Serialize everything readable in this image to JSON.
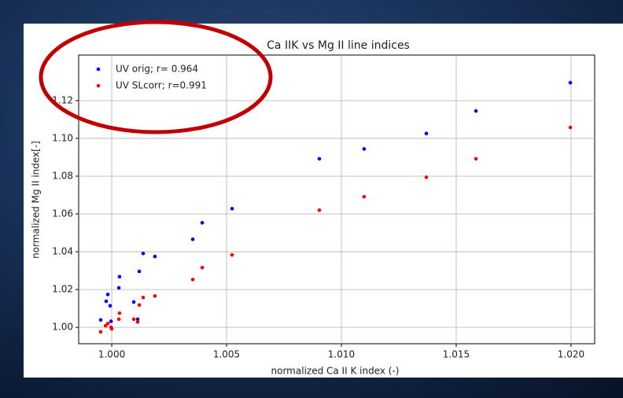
{
  "chart_data": {
    "type": "scatter",
    "title": "Ca IIK vs Mg II line indices",
    "x_label": "normalized Ca II K index (-)",
    "y_label": "normalized Mg II index[-]",
    "xlim": [
      0.99856,
      1.02103
    ],
    "ylim": [
      0.99132,
      1.1441
    ],
    "xticks": [
      {
        "value": 1.0,
        "label": "1.000"
      },
      1.005,
      {
        "value": 1.01,
        "label": "1.010"
      },
      1.015,
      {
        "value": 1.02,
        "label": "1.020"
      }
    ],
    "yticks": [
      {
        "value": 1.0,
        "label": "1.00"
      },
      1.02,
      1.04,
      1.06,
      1.08,
      {
        "value": 1.1,
        "label": "1.10"
      },
      1.12
    ],
    "grid": true,
    "legend": "upper-left",
    "series": [
      {
        "name": "UV orig; r= 0.964",
        "color": "#0000ff",
        "x": [
          0.99952,
          0.99976,
          0.99983,
          0.99993,
          0.99997,
          1.00031,
          1.00034,
          1.00096,
          1.00113,
          1.0012,
          1.00137,
          1.00188,
          1.00353,
          1.00394,
          1.00524,
          1.00904,
          1.01099,
          1.0137,
          1.01586,
          1.01997
        ],
        "values": [
          1.0039,
          1.0138,
          1.0174,
          1.0114,
          1.0032,
          1.0209,
          1.0268,
          1.0134,
          1.0043,
          1.0296,
          1.0391,
          1.0375,
          1.0466,
          1.0553,
          1.0628,
          1.0892,
          1.0944,
          1.1026,
          1.1145,
          1.1295
        ]
      },
      {
        "name": "UV SLcorr; r=0.991",
        "color": "#ff0000",
        "x": [
          0.99952,
          0.99973,
          0.99983,
          0.99997,
          1.0,
          1.00034,
          1.00031,
          1.00096,
          1.00113,
          1.0012,
          1.00137,
          1.00188,
          1.00353,
          1.00394,
          1.00524,
          1.00904,
          1.01099,
          1.0137,
          1.01586,
          1.01997
        ],
        "values": [
          0.9976,
          1.0008,
          1.002,
          1.0,
          0.9992,
          1.0075,
          1.0043,
          1.0043,
          1.0028,
          1.0118,
          1.0158,
          1.0166,
          1.0253,
          1.0316,
          1.0383,
          1.062,
          1.0691,
          1.0794,
          1.0892,
          1.1058
        ]
      }
    ]
  }
}
